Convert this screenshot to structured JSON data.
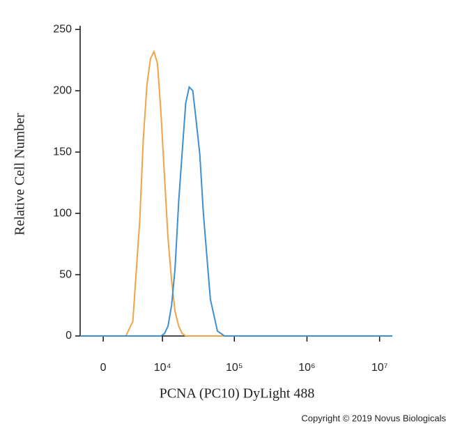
{
  "chart_data": {
    "type": "line",
    "xlabel": "PCNA (PC10) DyLight 488",
    "ylabel": "Relative Cell Number",
    "credit": "Copyright © 2019 Novus Biologicals",
    "xscale": "asinh",
    "x": [
      -2500,
      0,
      2440,
      3390,
      4500,
      5130,
      5870,
      6640,
      7510,
      8480,
      9550,
      10700,
      12000,
      13500,
      15100,
      17000,
      19000,
      21300,
      23800,
      26700,
      29800,
      33400,
      37400,
      46700,
      58500,
      73200,
      114600,
      15000000
    ],
    "series": [
      {
        "color": "#f0a445",
        "values": [
          0,
          0,
          0,
          12,
          95,
          160,
          205,
          226,
          232,
          222,
          180,
          130,
          80,
          45,
          20,
          8,
          2,
          0,
          0,
          0,
          0,
          0,
          0,
          0,
          0,
          0,
          0,
          0
        ]
      },
      {
        "color": "#3b8fd2",
        "values": [
          0,
          0,
          0,
          0,
          0,
          0,
          0,
          0,
          0,
          0,
          0,
          2,
          8,
          25,
          55,
          110,
          150,
          190,
          203,
          200,
          175,
          148,
          100,
          30,
          4,
          0,
          0,
          0
        ]
      }
    ],
    "xlim": [
      -2500,
      15000000
    ],
    "xticks": [
      0,
      {
        "value": 10000,
        "label": "10⁴"
      },
      {
        "value": 100000,
        "label": "10⁵"
      },
      {
        "value": 1000000,
        "label": "10⁶"
      },
      {
        "value": 10000000,
        "label": "10⁷"
      }
    ],
    "ylim": [
      0,
      253
    ],
    "yticks": [
      0,
      50,
      100,
      150,
      200,
      250
    ],
    "grid": false
  }
}
